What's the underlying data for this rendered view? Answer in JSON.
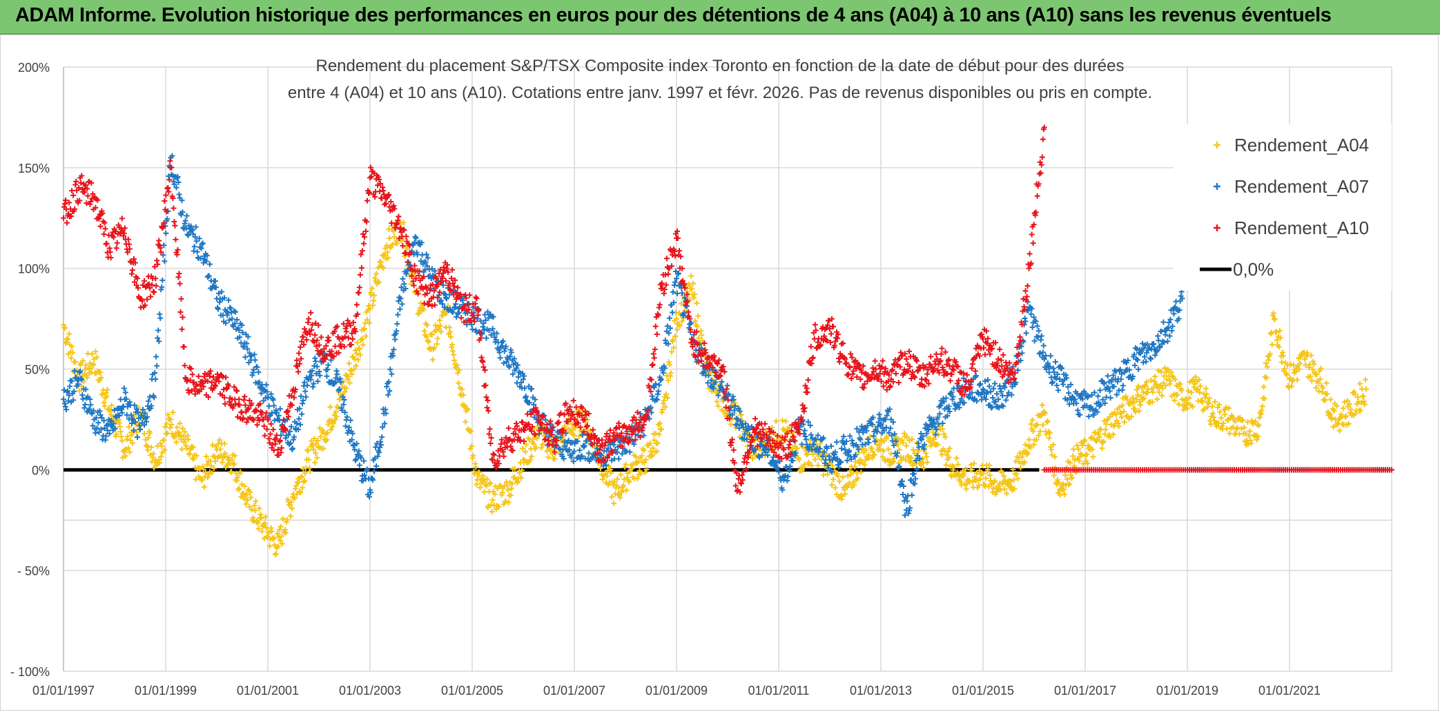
{
  "banner": {
    "title": "ADAM Informe. Evolution historique des performances en euros pour des détentions de 4 ans (A04) à 10 ans (A10) sans les revenus éventuels"
  },
  "colors": {
    "banner_bg": "#7dc671",
    "a04": "#f5c518",
    "a07": "#1f77c4",
    "a10": "#e8141b",
    "zero": "#000000"
  },
  "chart_data": {
    "type": "scatter",
    "title_line1": "Rendement du placement S&P/TSX Composite index Toronto en fonction de la date de début pour des durées",
    "title_line2": "entre 4 (A04) et 10 ans (A10). Cotations entre janv. 1997 et févr. 2026. Pas de revenus disponibles ou pris en compte.",
    "xlabel": "",
    "ylabel": "",
    "xlim": [
      1997.0,
      2023.0
    ],
    "ylim": [
      -100,
      200
    ],
    "y_ticks": [
      200,
      150,
      100,
      50,
      0,
      -50,
      -100
    ],
    "y_tick_labels": [
      "200%",
      "150%",
      "100%",
      "50%",
      "0%",
      "- 50%",
      "- 100%"
    ],
    "x_ticks": [
      1997,
      1999,
      2001,
      2003,
      2005,
      2007,
      2009,
      2011,
      2013,
      2015,
      2017,
      2019,
      2021
    ],
    "x_tick_labels": [
      "01/01/1997",
      "01/01/1999",
      "01/01/2001",
      "01/01/2003",
      "01/01/2005",
      "01/01/2007",
      "01/01/2009",
      "01/01/2011",
      "01/01/2013",
      "01/01/2015",
      "01/01/2017",
      "01/01/2019",
      "01/01/2021"
    ],
    "legend": {
      "placement": "top-right",
      "entries": [
        "Rendement_A04",
        "Rendement_A07",
        "Rendement_A10",
        "0,0%"
      ]
    },
    "series": [
      {
        "name": "Rendement_A04",
        "color": "#f5c518",
        "x": [
          1997.0,
          1997.3,
          1997.6,
          1997.9,
          1998.2,
          1998.5,
          1998.8,
          1999.1,
          1999.4,
          1999.7,
          2000.0,
          2000.3,
          2000.6,
          2000.9,
          2001.2,
          2001.5,
          2001.8,
          2002.1,
          2002.4,
          2002.7,
          2003.0,
          2003.3,
          2003.6,
          2003.9,
          2004.2,
          2004.5,
          2004.8,
          2005.1,
          2005.4,
          2005.7,
          2006.0,
          2006.3,
          2006.6,
          2006.9,
          2007.2,
          2007.5,
          2007.8,
          2008.1,
          2008.4,
          2008.7,
          2009.0,
          2009.3,
          2009.6,
          2009.9,
          2010.2,
          2010.5,
          2010.8,
          2011.1,
          2011.4,
          2011.7,
          2012.0,
          2012.3,
          2012.6,
          2012.9,
          2013.2,
          2013.5,
          2013.8,
          2014.1,
          2014.4,
          2014.7,
          2015.0,
          2015.3,
          2015.6,
          2015.9,
          2016.2,
          2016.5,
          2016.8,
          2017.1,
          2017.4,
          2017.7,
          2018.0,
          2018.3,
          2018.6,
          2018.9,
          2019.2,
          2019.5,
          2019.8,
          2020.1,
          2020.4,
          2020.7,
          2021.0,
          2021.3,
          2021.6,
          2021.9,
          2022.2,
          2022.5
        ],
        "y": [
          72,
          45,
          55,
          30,
          10,
          28,
          5,
          25,
          12,
          -5,
          10,
          5,
          -15,
          -28,
          -38,
          -12,
          5,
          18,
          35,
          55,
          80,
          110,
          122,
          88,
          60,
          78,
          40,
          -5,
          -15,
          -10,
          5,
          18,
          10,
          20,
          25,
          5,
          -12,
          0,
          5,
          20,
          75,
          90,
          48,
          35,
          25,
          10,
          15,
          20,
          5,
          10,
          0,
          -12,
          5,
          15,
          8,
          12,
          5,
          20,
          2,
          -5,
          -2,
          -8,
          -5,
          15,
          28,
          -10,
          5,
          10,
          20,
          28,
          35,
          40,
          45,
          35,
          40,
          28,
          25,
          18,
          22,
          75,
          45,
          55,
          45,
          25,
          30,
          40
        ]
      },
      {
        "name": "Rendement_A07",
        "color": "#1f77c4",
        "x": [
          1997.0,
          1997.3,
          1997.6,
          1997.9,
          1998.2,
          1998.5,
          1998.8,
          1999.1,
          1999.4,
          1999.7,
          2000.0,
          2000.3,
          2000.6,
          2000.9,
          2001.2,
          2001.5,
          2001.8,
          2002.1,
          2002.4,
          2002.7,
          2003.0,
          2003.3,
          2003.6,
          2003.9,
          2004.2,
          2004.5,
          2004.8,
          2005.1,
          2005.4,
          2005.7,
          2006.0,
          2006.3,
          2006.6,
          2006.9,
          2007.2,
          2007.5,
          2007.8,
          2008.1,
          2008.4,
          2008.7,
          2009.0,
          2009.3,
          2009.6,
          2009.9,
          2010.2,
          2010.5,
          2010.8,
          2011.1,
          2011.4,
          2011.7,
          2012.0,
          2012.3,
          2012.6,
          2012.9,
          2013.2,
          2013.5,
          2013.8,
          2014.1,
          2014.4,
          2014.7,
          2015.0,
          2015.3,
          2015.6,
          2015.9,
          2016.2,
          2016.5,
          2016.8,
          2017.1,
          2017.4,
          2017.7,
          2018.0,
          2018.3,
          2018.6,
          2018.9
        ],
        "y": [
          35,
          45,
          25,
          18,
          35,
          20,
          45,
          155,
          120,
          110,
          85,
          75,
          60,
          40,
          25,
          15,
          45,
          55,
          40,
          10,
          -10,
          30,
          85,
          115,
          95,
          85,
          80,
          75,
          70,
          55,
          45,
          25,
          15,
          10,
          12,
          8,
          10,
          15,
          25,
          45,
          95,
          65,
          50,
          40,
          25,
          15,
          10,
          -5,
          20,
          15,
          5,
          10,
          15,
          20,
          25,
          -20,
          15,
          25,
          35,
          40,
          40,
          35,
          45,
          80,
          55,
          45,
          35,
          30,
          40,
          45,
          55,
          60,
          70,
          85
        ]
      },
      {
        "name": "Rendement_A10",
        "color": "#e8141b",
        "x": [
          1997.0,
          1997.3,
          1997.6,
          1997.9,
          1998.2,
          1998.5,
          1998.8,
          1999.1,
          1999.4,
          1999.7,
          2000.0,
          2000.3,
          2000.6,
          2000.9,
          2001.2,
          2001.5,
          2001.8,
          2002.1,
          2002.4,
          2002.7,
          2003.0,
          2003.3,
          2003.6,
          2003.9,
          2004.2,
          2004.5,
          2004.8,
          2005.1,
          2005.4,
          2005.7,
          2006.0,
          2006.3,
          2006.6,
          2006.9,
          2007.2,
          2007.5,
          2007.8,
          2008.1,
          2008.4,
          2008.7,
          2009.0,
          2009.3,
          2009.6,
          2009.9,
          2010.2,
          2010.5,
          2010.8,
          2011.1,
          2011.4,
          2011.7,
          2012.0,
          2012.3,
          2012.6,
          2012.9,
          2013.2,
          2013.5,
          2013.8,
          2014.1,
          2014.4,
          2014.7,
          2015.0,
          2015.3,
          2015.6,
          2015.9,
          2016.2
        ],
        "y": [
          125,
          140,
          135,
          110,
          120,
          85,
          95,
          150,
          45,
          40,
          45,
          35,
          30,
          25,
          10,
          40,
          75,
          60,
          65,
          70,
          145,
          135,
          120,
          95,
          85,
          100,
          80,
          80,
          5,
          15,
          20,
          25,
          15,
          30,
          25,
          10,
          15,
          20,
          25,
          90,
          115,
          65,
          55,
          50,
          -10,
          20,
          15,
          10,
          20,
          65,
          70,
          55,
          45,
          50,
          45,
          55,
          45,
          55,
          50,
          40,
          65,
          55,
          45,
          100,
          170
        ]
      },
      {
        "name": "0,0%",
        "color": "#000000",
        "x": [
          1997.0,
          2016.1
        ],
        "y": [
          0,
          0
        ]
      }
    ]
  }
}
